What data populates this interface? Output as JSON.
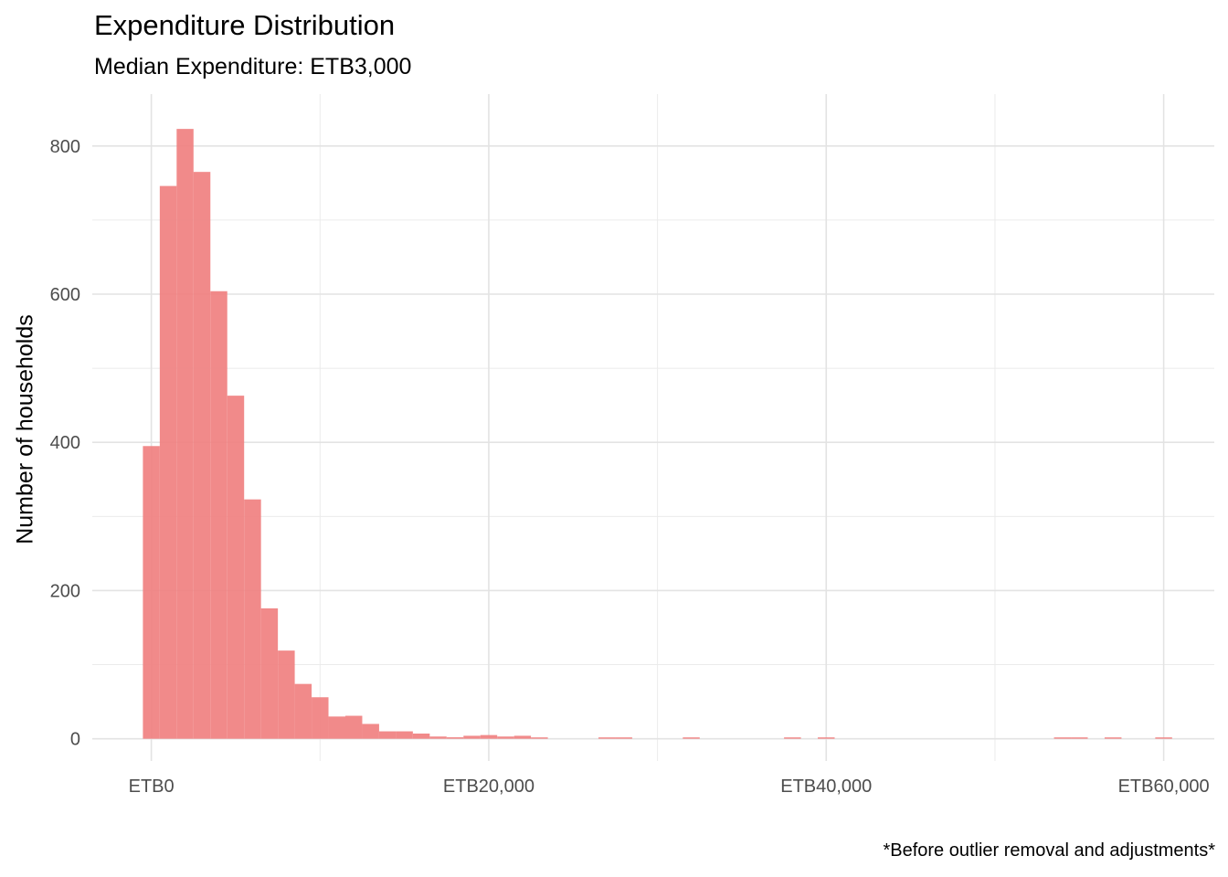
{
  "chart_data": {
    "type": "bar",
    "title": "Expenditure Distribution",
    "subtitle": "Median Expenditure: ETB3,000",
    "ylabel": "Number of households",
    "caption": "*Before outlier removal and adjustments*",
    "x_ticks": [
      {
        "value": 0,
        "label": "ETB0"
      },
      {
        "value": 20000,
        "label": "ETB20,000"
      },
      {
        "value": 40000,
        "label": "ETB40,000"
      },
      {
        "value": 60000,
        "label": "ETB60,000"
      }
    ],
    "y_ticks": [
      {
        "value": 0,
        "label": "0"
      },
      {
        "value": 200,
        "label": "200"
      },
      {
        "value": 400,
        "label": "400"
      },
      {
        "value": 600,
        "label": "600"
      },
      {
        "value": 800,
        "label": "800"
      }
    ],
    "xlim": [
      -3500,
      63000
    ],
    "ylim": [
      -30,
      870
    ],
    "bin_width": 1000,
    "bins_start": [
      -500,
      500,
      1500,
      2500,
      3500,
      4500,
      5500,
      6500,
      7500,
      8500,
      9500,
      10500,
      11500,
      12500,
      13500,
      14500,
      15500,
      16500,
      17500,
      18500,
      19500,
      20500,
      21500,
      22500,
      26500,
      27500,
      31500,
      37500,
      39500,
      53500,
      54500,
      56500,
      59500
    ],
    "values": [
      395,
      746,
      823,
      765,
      604,
      463,
      323,
      176,
      119,
      74,
      56,
      30,
      31,
      20,
      10,
      10,
      7,
      3,
      2,
      4,
      5,
      3,
      4,
      1,
      1,
      1,
      1,
      1,
      1,
      1,
      1,
      1,
      1
    ],
    "bar_color": "#f08080",
    "grid": true
  }
}
